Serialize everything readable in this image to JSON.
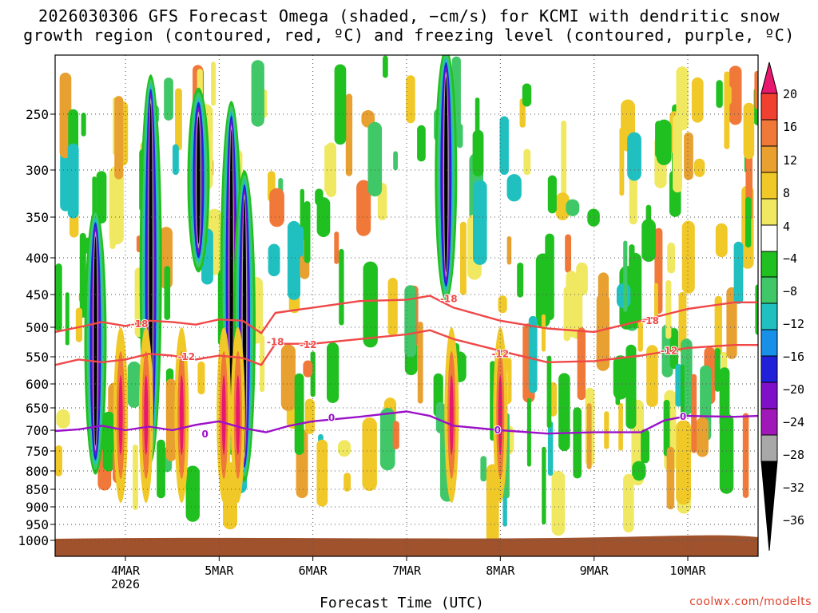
{
  "chart_data": {
    "type": "time-height-section",
    "title_lines": [
      "2026030306 GFS Forecast Omega (shaded, −cm/s) for KCMI with dendritic snow",
      "growth region (contoured, red, ºC) and freezing level (contoured, purple, ºC)"
    ],
    "xlabel": "Forecast Time (UTC)",
    "x_ticks": [
      {
        "day": 4,
        "label": "4MAR",
        "sub": "2026"
      },
      {
        "day": 5,
        "label": "5MAR",
        "sub": ""
      },
      {
        "day": 6,
        "label": "6MAR",
        "sub": ""
      },
      {
        "day": 7,
        "label": "7MAR",
        "sub": ""
      },
      {
        "day": 8,
        "label": "8MAR",
        "sub": ""
      },
      {
        "day": 9,
        "label": "9MAR",
        "sub": ""
      },
      {
        "day": 10,
        "label": "10MAR",
        "sub": ""
      }
    ],
    "xlim_days": [
      3.25,
      10.75
    ],
    "ylabel": "Pressure (hPa)",
    "y_ticks": [
      250,
      300,
      350,
      400,
      450,
      500,
      550,
      600,
      650,
      700,
      750,
      800,
      850,
      900,
      950,
      1000
    ],
    "ylim_hpa": [
      200,
      1020
    ],
    "colorbar": {
      "labels": [
        "20",
        "16",
        "12",
        "8",
        "4",
        "−4",
        "−8",
        "−12",
        "−16",
        "−20",
        "−24",
        "−28",
        "−32",
        "−36"
      ],
      "colors": [
        "#e8186e",
        "#f04030",
        "#f07838",
        "#e8a030",
        "#f0c828",
        "#f0e860",
        "#ffffff",
        "#20c020",
        "#40c868",
        "#20c0c0",
        "#1890e8",
        "#2020d8",
        "#8010c8",
        "#a018b8",
        "#a8a8a8",
        "#000000"
      ]
    },
    "dgz_minus12": {
      "label": "-12",
      "color": "#f04848",
      "days": [
        3.25,
        3.5,
        3.75,
        4.0,
        4.25,
        4.5,
        4.75,
        5.0,
        5.25,
        5.45,
        5.6,
        6.0,
        6.5,
        7.0,
        7.25,
        7.5,
        8.0,
        8.5,
        9.0,
        9.5,
        10.0,
        10.5,
        10.75
      ],
      "hpa": [
        565,
        555,
        560,
        555,
        545,
        548,
        555,
        548,
        552,
        565,
        528,
        528,
        520,
        512,
        505,
        520,
        540,
        560,
        558,
        548,
        535,
        530,
        530
      ]
    },
    "dgz_minus18": {
      "label": "-18",
      "color": "#f04848",
      "days": [
        3.25,
        3.5,
        3.75,
        4.0,
        4.25,
        4.5,
        4.75,
        5.0,
        5.25,
        5.45,
        5.6,
        6.0,
        6.5,
        7.0,
        7.25,
        7.5,
        8.0,
        8.5,
        9.0,
        9.5,
        10.0,
        10.5,
        10.75
      ],
      "hpa": [
        508,
        500,
        492,
        498,
        490,
        492,
        496,
        488,
        490,
        510,
        478,
        470,
        460,
        458,
        452,
        470,
        490,
        502,
        508,
        490,
        472,
        462,
        462
      ]
    },
    "freezing_level": {
      "label": "0",
      "color": "#9b10c8",
      "days": [
        3.25,
        3.5,
        3.75,
        4.0,
        4.25,
        4.5,
        4.75,
        5.0,
        5.25,
        5.5,
        5.75,
        6.0,
        6.5,
        7.0,
        7.25,
        7.5,
        8.0,
        8.5,
        9.0,
        9.5,
        9.75,
        10.0,
        10.5,
        10.75
      ],
      "hpa": [
        702,
        698,
        690,
        700,
        692,
        700,
        688,
        680,
        695,
        705,
        690,
        680,
        670,
        658,
        668,
        690,
        700,
        708,
        705,
        705,
        678,
        668,
        670,
        668
      ]
    },
    "contour_labels": [
      {
        "text": "-18",
        "day": 4.15,
        "hpa": 495
      },
      {
        "text": "-12",
        "day": 4.65,
        "hpa": 550
      },
      {
        "text": "0",
        "day": 4.85,
        "hpa": 710
      },
      {
        "text": "-18",
        "day": 5.6,
        "hpa": 525
      },
      {
        "text": "-12",
        "day": 5.95,
        "hpa": 530
      },
      {
        "text": "0",
        "day": 6.2,
        "hpa": 672
      },
      {
        "text": "-18",
        "day": 7.45,
        "hpa": 457
      },
      {
        "text": "-12",
        "day": 8.0,
        "hpa": 545
      },
      {
        "text": "0",
        "day": 7.97,
        "hpa": 700
      },
      {
        "text": "-18",
        "day": 9.6,
        "hpa": 490
      },
      {
        "text": "-12",
        "day": 9.8,
        "hpa": 540
      },
      {
        "text": "0",
        "day": 9.95,
        "hpa": 670
      }
    ],
    "strong_ascent_columns": [
      {
        "day": 3.68,
        "top_hpa": 340,
        "bottom_hpa": 810
      },
      {
        "day": 4.27,
        "top_hpa": 220,
        "bottom_hpa": 780
      },
      {
        "day": 4.78,
        "top_hpa": 230,
        "bottom_hpa": 420
      },
      {
        "day": 5.13,
        "top_hpa": 240,
        "bottom_hpa": 760
      },
      {
        "day": 5.27,
        "top_hpa": 300,
        "bottom_hpa": 830
      },
      {
        "day": 7.42,
        "top_hpa": 200,
        "bottom_hpa": 460
      }
    ]
  },
  "credit": "coolwx.com/modelts"
}
